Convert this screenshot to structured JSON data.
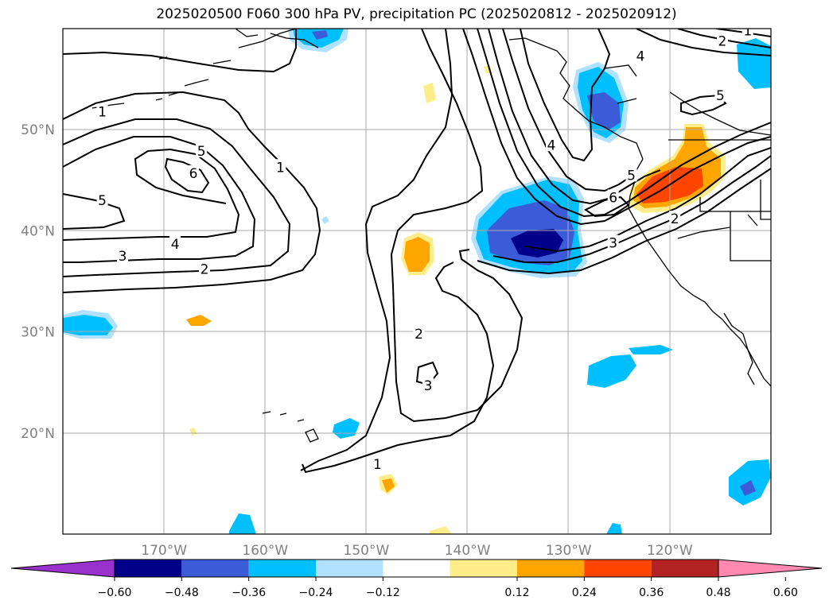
{
  "title": "2025020500 F060 300 hPa PV, precipitation PC (2025020812 - 2025020912)",
  "map": {
    "lon_range": [
      -180,
      -110
    ],
    "lat_range": [
      10,
      60
    ],
    "lat_labels": [
      {
        "lat": 50,
        "text": "50°N"
      },
      {
        "lat": 40,
        "text": "40°N"
      },
      {
        "lat": 30,
        "text": "30°N"
      },
      {
        "lat": 20,
        "text": "20°N"
      }
    ],
    "lon_labels": [
      {
        "lon": -170,
        "text": "170°W"
      },
      {
        "lon": -160,
        "text": "160°W"
      },
      {
        "lon": -150,
        "text": "150°W"
      },
      {
        "lon": -140,
        "text": "140°W"
      },
      {
        "lon": -130,
        "text": "130°W"
      },
      {
        "lon": -120,
        "text": "120°W"
      }
    ],
    "gridlines": true,
    "pv_contour_labels": [
      {
        "text": "1",
        "lon": -176.1,
        "lat": 51.8
      },
      {
        "text": "5",
        "lon": -176.1,
        "lat": 43.0
      },
      {
        "text": "5",
        "lon": -166.3,
        "lat": 47.9
      },
      {
        "text": "6",
        "lon": -167.1,
        "lat": 45.7
      },
      {
        "text": "4",
        "lon": -168.9,
        "lat": 38.7
      },
      {
        "text": "3",
        "lon": -174.1,
        "lat": 37.5
      },
      {
        "text": "2",
        "lon": -166.0,
        "lat": 36.2
      },
      {
        "text": "1",
        "lon": -158.5,
        "lat": 46.3
      },
      {
        "text": "2",
        "lon": -144.8,
        "lat": 29.8
      },
      {
        "text": "3",
        "lon": -143.9,
        "lat": 24.7
      },
      {
        "text": "1",
        "lon": -148.9,
        "lat": 16.9
      },
      {
        "text": "4",
        "lon": -131.7,
        "lat": 48.5
      },
      {
        "text": "5",
        "lon": -123.8,
        "lat": 45.5
      },
      {
        "text": "6",
        "lon": -125.6,
        "lat": 43.3
      },
      {
        "text": "3",
        "lon": -125.6,
        "lat": 38.8
      },
      {
        "text": "2",
        "lon": -119.5,
        "lat": 41.2
      },
      {
        "text": "4",
        "lon": -122.9,
        "lat": 57.3
      },
      {
        "text": "5",
        "lon": -115.0,
        "lat": 53.4
      },
      {
        "text": "2",
        "lon": -114.8,
        "lat": 58.8
      },
      {
        "text": "1",
        "lon": -112.3,
        "lat": 59.8
      }
    ]
  },
  "colorbar": {
    "colors": [
      "#9932cc",
      "#00008b",
      "#3b5bd9",
      "#00bfff",
      "#b0e2ff",
      "#ffffff",
      "#ffed8a",
      "#ffa500",
      "#ff4500",
      "#b22222",
      "#ff89b0"
    ],
    "ticks": [
      "−0.60",
      "−0.48",
      "−0.36",
      "−0.24",
      "−0.12",
      "0.12",
      "0.24",
      "0.36",
      "0.48",
      "0.60"
    ]
  }
}
